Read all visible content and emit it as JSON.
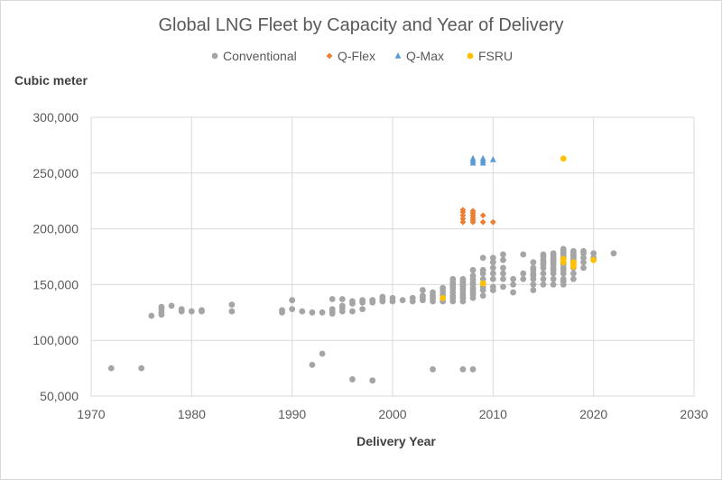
{
  "chart_data": {
    "type": "scatter",
    "title": "Global LNG Fleet by Capacity and Year of Delivery",
    "xlabel": "Delivery Year",
    "ylabel": "Cubic meter",
    "xlim": [
      1970,
      2030
    ],
    "ylim": [
      50000,
      300000
    ],
    "xticks": [
      1970,
      1980,
      1990,
      2000,
      2010,
      2020,
      2030
    ],
    "yticks": [
      50000,
      100000,
      150000,
      200000,
      250000,
      300000
    ],
    "xtick_labels": [
      "1970",
      "1980",
      "1990",
      "2000",
      "2010",
      "2020",
      "2030"
    ],
    "ytick_labels": [
      "50,000",
      "100,000",
      "150,000",
      "200,000",
      "250,000",
      "300,000"
    ],
    "legend_position": "top",
    "series": [
      {
        "name": "Conventional",
        "color": "#a5a5a5",
        "marker": "circle",
        "points": [
          [
            1972,
            75000
          ],
          [
            1975,
            75000
          ],
          [
            1976,
            122000
          ],
          [
            1977,
            123000
          ],
          [
            1977,
            125000
          ],
          [
            1977,
            128000
          ],
          [
            1977,
            130000
          ],
          [
            1978,
            131000
          ],
          [
            1979,
            126000
          ],
          [
            1979,
            128000
          ],
          [
            1980,
            126000
          ],
          [
            1981,
            126000
          ],
          [
            1981,
            127000
          ],
          [
            1984,
            126000
          ],
          [
            1984,
            132000
          ],
          [
            1989,
            125000
          ],
          [
            1989,
            127000
          ],
          [
            1990,
            128000
          ],
          [
            1990,
            136000
          ],
          [
            1991,
            126000
          ],
          [
            1992,
            125000
          ],
          [
            1992,
            78000
          ],
          [
            1993,
            125000
          ],
          [
            1993,
            88000
          ],
          [
            1994,
            124000
          ],
          [
            1994,
            126000
          ],
          [
            1994,
            128000
          ],
          [
            1994,
            137000
          ],
          [
            1995,
            126000
          ],
          [
            1995,
            129000
          ],
          [
            1995,
            131000
          ],
          [
            1995,
            137000
          ],
          [
            1996,
            126000
          ],
          [
            1996,
            133000
          ],
          [
            1996,
            135000
          ],
          [
            1996,
            65000
          ],
          [
            1997,
            128000
          ],
          [
            1997,
            134000
          ],
          [
            1997,
            136000
          ],
          [
            1998,
            134000
          ],
          [
            1998,
            136000
          ],
          [
            1998,
            64000
          ],
          [
            1999,
            135000
          ],
          [
            1999,
            137000
          ],
          [
            1999,
            139000
          ],
          [
            2000,
            135000
          ],
          [
            2000,
            138000
          ],
          [
            2001,
            136000
          ],
          [
            2002,
            135000
          ],
          [
            2002,
            138000
          ],
          [
            2003,
            136000
          ],
          [
            2003,
            138000
          ],
          [
            2003,
            140000
          ],
          [
            2003,
            145000
          ],
          [
            2004,
            135000
          ],
          [
            2004,
            138000
          ],
          [
            2004,
            140000
          ],
          [
            2004,
            143000
          ],
          [
            2004,
            74000
          ],
          [
            2005,
            135000
          ],
          [
            2005,
            138000
          ],
          [
            2005,
            141000
          ],
          [
            2005,
            144000
          ],
          [
            2005,
            147000
          ],
          [
            2006,
            135000
          ],
          [
            2006,
            138000
          ],
          [
            2006,
            140000
          ],
          [
            2006,
            143000
          ],
          [
            2006,
            146000
          ],
          [
            2006,
            148000
          ],
          [
            2006,
            150000
          ],
          [
            2006,
            152000
          ],
          [
            2006,
            155000
          ],
          [
            2007,
            135000
          ],
          [
            2007,
            138000
          ],
          [
            2007,
            140000
          ],
          [
            2007,
            142000
          ],
          [
            2007,
            145000
          ],
          [
            2007,
            147000
          ],
          [
            2007,
            149000
          ],
          [
            2007,
            151000
          ],
          [
            2007,
            153000
          ],
          [
            2007,
            155000
          ],
          [
            2007,
            74000
          ],
          [
            2008,
            138000
          ],
          [
            2008,
            141000
          ],
          [
            2008,
            143000
          ],
          [
            2008,
            145000
          ],
          [
            2008,
            147000
          ],
          [
            2008,
            150000
          ],
          [
            2008,
            152000
          ],
          [
            2008,
            155000
          ],
          [
            2008,
            158000
          ],
          [
            2008,
            163000
          ],
          [
            2008,
            74000
          ],
          [
            2009,
            140000
          ],
          [
            2009,
            145000
          ],
          [
            2009,
            148000
          ],
          [
            2009,
            151000
          ],
          [
            2009,
            155000
          ],
          [
            2009,
            160000
          ],
          [
            2009,
            163000
          ],
          [
            2009,
            174000
          ],
          [
            2010,
            145000
          ],
          [
            2010,
            148000
          ],
          [
            2010,
            155000
          ],
          [
            2010,
            160000
          ],
          [
            2010,
            165000
          ],
          [
            2010,
            170000
          ],
          [
            2010,
            174000
          ],
          [
            2011,
            148000
          ],
          [
            2011,
            155000
          ],
          [
            2011,
            160000
          ],
          [
            2011,
            165000
          ],
          [
            2011,
            172000
          ],
          [
            2011,
            177000
          ],
          [
            2012,
            143000
          ],
          [
            2012,
            150000
          ],
          [
            2012,
            155000
          ],
          [
            2013,
            155000
          ],
          [
            2013,
            160000
          ],
          [
            2013,
            177000
          ],
          [
            2014,
            145000
          ],
          [
            2014,
            150000
          ],
          [
            2014,
            155000
          ],
          [
            2014,
            158000
          ],
          [
            2014,
            160000
          ],
          [
            2014,
            163000
          ],
          [
            2014,
            165000
          ],
          [
            2014,
            170000
          ],
          [
            2015,
            150000
          ],
          [
            2015,
            155000
          ],
          [
            2015,
            160000
          ],
          [
            2015,
            165000
          ],
          [
            2015,
            168000
          ],
          [
            2015,
            170000
          ],
          [
            2015,
            172000
          ],
          [
            2015,
            175000
          ],
          [
            2015,
            177000
          ],
          [
            2016,
            150000
          ],
          [
            2016,
            155000
          ],
          [
            2016,
            160000
          ],
          [
            2016,
            163000
          ],
          [
            2016,
            165000
          ],
          [
            2016,
            168000
          ],
          [
            2016,
            170000
          ],
          [
            2016,
            172000
          ],
          [
            2016,
            174000
          ],
          [
            2016,
            176000
          ],
          [
            2016,
            178000
          ],
          [
            2017,
            150000
          ],
          [
            2017,
            153000
          ],
          [
            2017,
            155000
          ],
          [
            2017,
            160000
          ],
          [
            2017,
            163000
          ],
          [
            2017,
            165000
          ],
          [
            2017,
            168000
          ],
          [
            2017,
            170000
          ],
          [
            2017,
            174000
          ],
          [
            2017,
            176000
          ],
          [
            2017,
            178000
          ],
          [
            2017,
            180000
          ],
          [
            2017,
            182000
          ],
          [
            2018,
            155000
          ],
          [
            2018,
            160000
          ],
          [
            2018,
            165000
          ],
          [
            2018,
            170000
          ],
          [
            2018,
            172000
          ],
          [
            2018,
            174000
          ],
          [
            2018,
            176000
          ],
          [
            2018,
            178000
          ],
          [
            2018,
            180000
          ],
          [
            2019,
            165000
          ],
          [
            2019,
            170000
          ],
          [
            2019,
            174000
          ],
          [
            2019,
            178000
          ],
          [
            2019,
            180000
          ],
          [
            2020,
            174000
          ],
          [
            2020,
            178000
          ],
          [
            2022,
            178000
          ]
        ]
      },
      {
        "name": "Q-Flex",
        "color": "#ed7d31",
        "marker": "diamond",
        "points": [
          [
            2007,
            206000
          ],
          [
            2007,
            209000
          ],
          [
            2007,
            212000
          ],
          [
            2007,
            215000
          ],
          [
            2007,
            217000
          ],
          [
            2008,
            206000
          ],
          [
            2008,
            208000
          ],
          [
            2008,
            210000
          ],
          [
            2008,
            212000
          ],
          [
            2008,
            214000
          ],
          [
            2008,
            216000
          ],
          [
            2009,
            206000
          ],
          [
            2009,
            212000
          ],
          [
            2010,
            206000
          ]
        ]
      },
      {
        "name": "Q-Max",
        "color": "#5b9bd5",
        "marker": "triangle",
        "points": [
          [
            2008,
            259000
          ],
          [
            2008,
            261000
          ],
          [
            2008,
            263000
          ],
          [
            2009,
            259000
          ],
          [
            2009,
            261000
          ],
          [
            2009,
            263000
          ],
          [
            2010,
            262000
          ]
        ]
      },
      {
        "name": "FSRU",
        "color": "#ffc000",
        "marker": "circle",
        "points": [
          [
            2005,
            138000
          ],
          [
            2009,
            151000
          ],
          [
            2017,
            263000
          ],
          [
            2017,
            170000
          ],
          [
            2017,
            173000
          ],
          [
            2018,
            166000
          ],
          [
            2018,
            168000
          ],
          [
            2018,
            170000
          ],
          [
            2020,
            172000
          ]
        ]
      }
    ]
  }
}
